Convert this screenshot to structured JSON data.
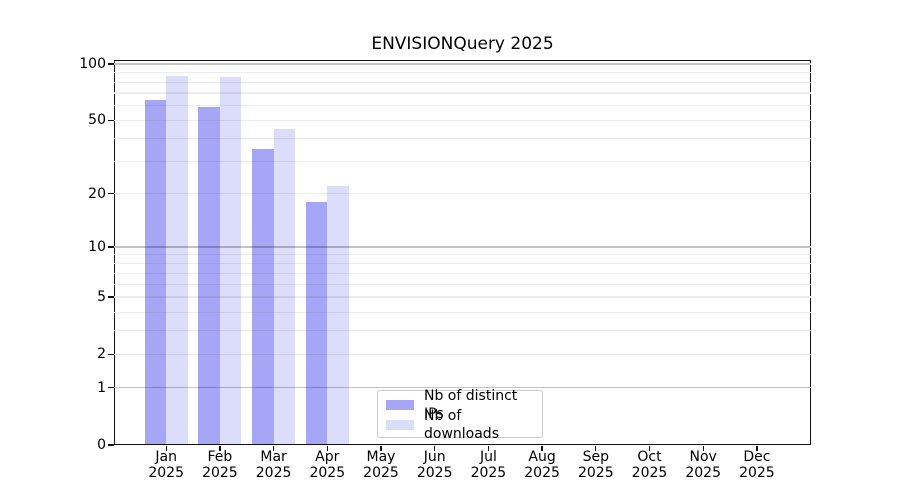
{
  "chart_data": {
    "type": "bar",
    "title": "ENVISIONQuery 2025",
    "categories": [
      "Jan",
      "Feb",
      "Mar",
      "Apr",
      "May",
      "Jun",
      "Jul",
      "Aug",
      "Sep",
      "Oct",
      "Nov",
      "Dec"
    ],
    "year_label": "2025",
    "series": [
      {
        "name": "Nb of distinct IPs",
        "color": "#a6a6f6",
        "values": [
          64,
          59,
          35,
          18,
          0,
          0,
          0,
          0,
          0,
          0,
          0,
          0
        ]
      },
      {
        "name": "Nb of downloads",
        "color": "#dcdcfb",
        "values": [
          86,
          85,
          45,
          22,
          0,
          0,
          0,
          0,
          0,
          0,
          0,
          0
        ]
      }
    ],
    "yaxis": {
      "scale": "log1p",
      "range": [
        0,
        100
      ],
      "tick_values": [
        100,
        50,
        20,
        10,
        5,
        2,
        1,
        0
      ],
      "tick_labels": [
        "100",
        "50",
        "20",
        "10",
        "5",
        "2",
        "1",
        "0"
      ],
      "major_grid_values": [
        100,
        10,
        1
      ],
      "minor_grid_values": [
        90,
        80,
        70,
        60,
        50,
        40,
        30,
        20,
        9,
        8,
        7,
        6,
        5,
        4,
        3,
        2
      ],
      "major_grid_color": "#c3c3c3",
      "minor_grid_color": "#ececec"
    },
    "grid": true,
    "legend": {
      "position": "bottom-center",
      "entries": [
        "Nb of distinct IPs",
        "Nb of downloads"
      ]
    }
  }
}
